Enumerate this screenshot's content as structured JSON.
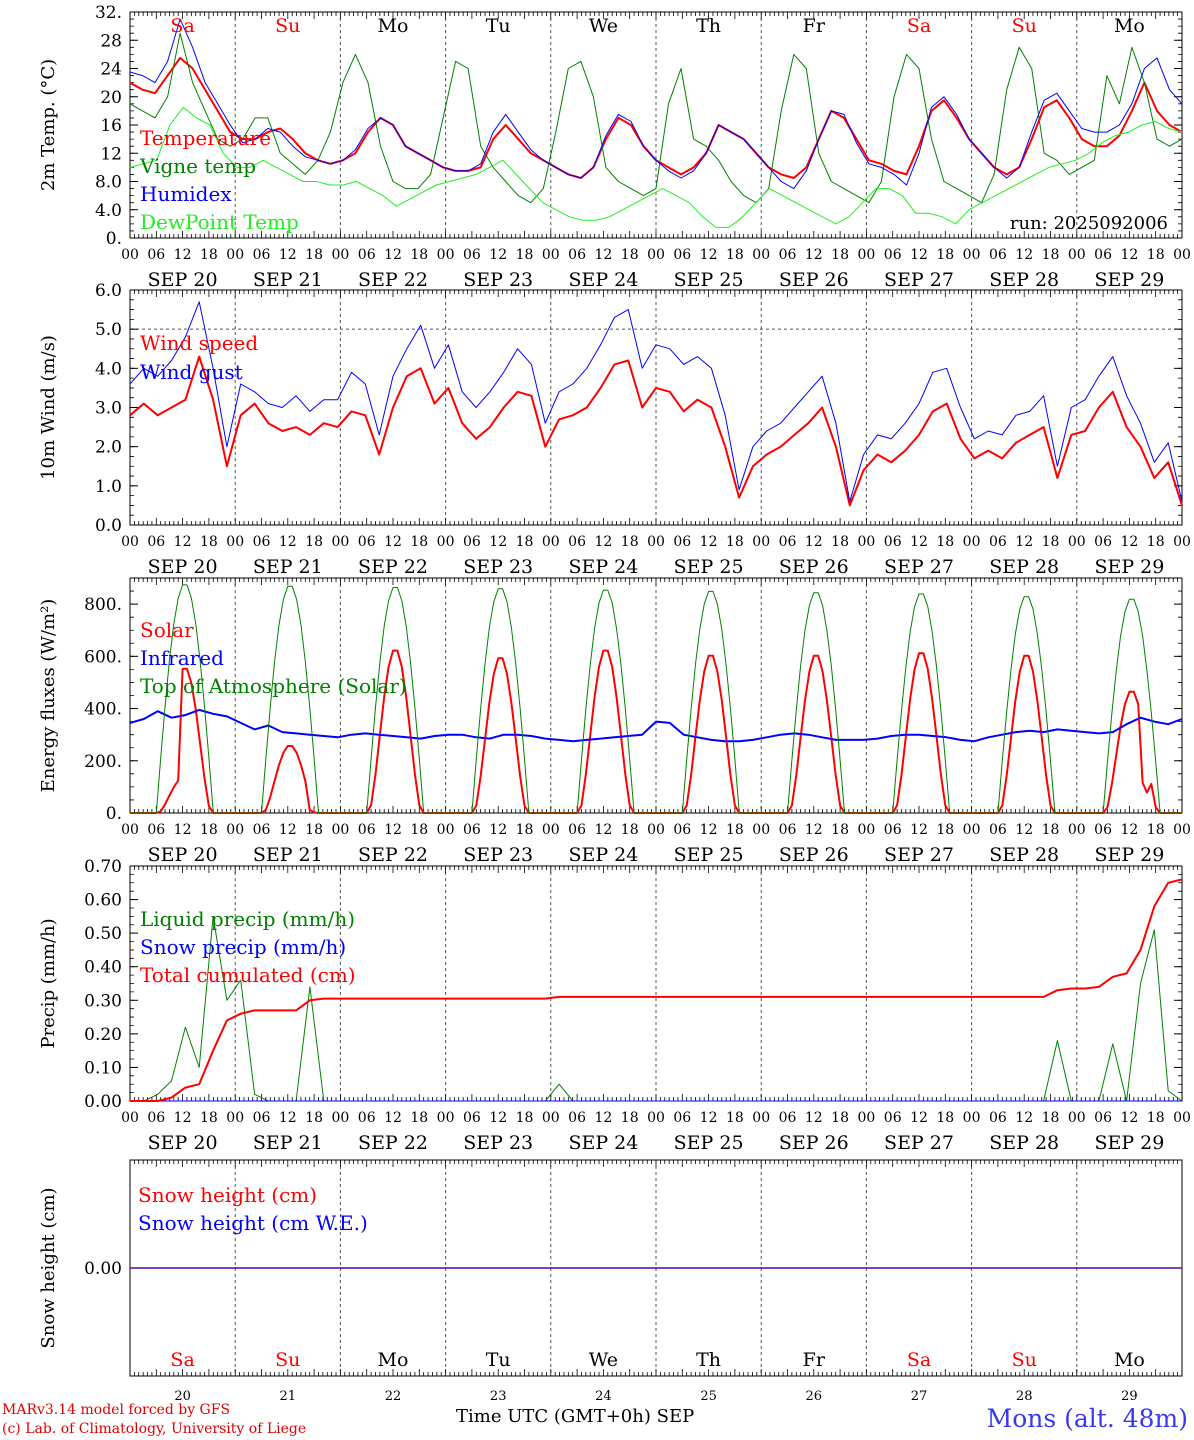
{
  "footer": {
    "credit_line1": "MARv3.14 model forced by GFS",
    "credit_line2": "(c) Lab. of Climatology, University of Liege",
    "xaxis_title": "Time UTC (GMT+0h)",
    "month": "SEP",
    "station": "Mons (alt. 48m)"
  },
  "colors": {
    "red": "#ff0000",
    "green": "#008000",
    "blue": "#0000ff",
    "lightgreen": "#22ee22",
    "grid": "#555555"
  },
  "days": [
    {
      "abbr": "Sa",
      "date": "SEP 20",
      "num": "20",
      "weekend": true
    },
    {
      "abbr": "Su",
      "date": "SEP 21",
      "num": "21",
      "weekend": true
    },
    {
      "abbr": "Mo",
      "date": "SEP 22",
      "num": "22",
      "weekend": false
    },
    {
      "abbr": "Tu",
      "date": "SEP 23",
      "num": "23",
      "weekend": false
    },
    {
      "abbr": "We",
      "date": "SEP 24",
      "num": "24",
      "weekend": false
    },
    {
      "abbr": "Th",
      "date": "SEP 25",
      "num": "25",
      "weekend": false
    },
    {
      "abbr": "Fr",
      "date": "SEP 26",
      "num": "26",
      "weekend": false
    },
    {
      "abbr": "Sa",
      "date": "SEP 27",
      "num": "27",
      "weekend": true
    },
    {
      "abbr": "Su",
      "date": "SEP 28",
      "num": "28",
      "weekend": true
    },
    {
      "abbr": "Mo",
      "date": "SEP 29",
      "num": "29",
      "weekend": false
    }
  ],
  "hour_ticks": [
    "00",
    "06",
    "12",
    "18"
  ],
  "hour_end": "00",
  "chart_data": [
    {
      "id": "temp",
      "type": "line",
      "ylabel": "2m Temp. (°C)",
      "ylim": [
        0,
        32
      ],
      "yticks": [
        "0.",
        "4.0",
        "8.0",
        "12",
        "16",
        "20",
        "24",
        "28",
        "32."
      ],
      "ytick_values": [
        0,
        4,
        8,
        12,
        16,
        20,
        24,
        28,
        32
      ],
      "dashed_levels": [],
      "annotation": "run: 2025092006",
      "x_hours_step": 3,
      "series": [
        {
          "name": "Temperature",
          "color": "red",
          "width": 2,
          "values": [
            22,
            21,
            20.5,
            23,
            25.5,
            24,
            21,
            18,
            15,
            14,
            14,
            15,
            15.5,
            14,
            12,
            11,
            10.5,
            11,
            12,
            15,
            17,
            16,
            13,
            12,
            11,
            10,
            9.5,
            9.5,
            10,
            14,
            16,
            14,
            12,
            11,
            10,
            9,
            8.5,
            10,
            14,
            17,
            16,
            13,
            11,
            10,
            9,
            10,
            12,
            16,
            15,
            14,
            12,
            10,
            9,
            8.5,
            10,
            14,
            18,
            17,
            14,
            11,
            10.5,
            9.5,
            9,
            13,
            18,
            19.5,
            17,
            14,
            12,
            10,
            9,
            10,
            14,
            18.5,
            19.5,
            17,
            14,
            13,
            13,
            14.5,
            18,
            22,
            18,
            16,
            15
          ]
        },
        {
          "name": "Vigne temp",
          "color": "green",
          "width": 1,
          "values": [
            19,
            18,
            17,
            20,
            29,
            22,
            18,
            14,
            13,
            14,
            17,
            17,
            12,
            10.5,
            9,
            11,
            15,
            22,
            26,
            22,
            13,
            8,
            7,
            7,
            9,
            17,
            25,
            24,
            13,
            10,
            8,
            6,
            5,
            7,
            15,
            24,
            25,
            20,
            10,
            8,
            7,
            6,
            7,
            19,
            24,
            14,
            13,
            11,
            8,
            6,
            5,
            7,
            18,
            26,
            24,
            12,
            8,
            7,
            6,
            5,
            8,
            20,
            26,
            24,
            14,
            8,
            7,
            6,
            5,
            9,
            21,
            27,
            24,
            12,
            11,
            9,
            10,
            11,
            23,
            19,
            27,
            22,
            14,
            13,
            14
          ]
        },
        {
          "name": "Humidex",
          "color": "blue",
          "width": 1,
          "values": [
            23.5,
            23,
            22,
            25,
            31,
            27,
            22,
            19,
            16,
            13.5,
            14,
            15.5,
            15,
            13,
            11.5,
            11,
            10.5,
            11,
            12.5,
            15.5,
            17,
            16,
            13,
            12,
            11,
            10,
            9.5,
            9.5,
            10.5,
            15,
            17.5,
            15,
            12.5,
            11,
            10,
            9,
            8.5,
            10,
            14.5,
            17.5,
            16.5,
            13,
            11,
            9.5,
            8.5,
            9.5,
            12,
            16,
            15,
            14,
            12,
            10,
            8,
            7,
            9.5,
            14,
            18,
            17.5,
            13.5,
            10.5,
            10,
            9,
            7.5,
            12,
            18.5,
            20,
            17.5,
            14,
            12,
            10,
            8.5,
            10,
            15,
            19.5,
            20.5,
            18,
            15.5,
            15,
            15,
            16,
            19,
            24,
            25.5,
            21,
            19
          ]
        },
        {
          "name": "DewPoint Temp",
          "color": "lightgreen",
          "width": 1,
          "values": [
            10,
            10.5,
            11,
            16,
            18.5,
            17,
            16,
            12,
            10,
            10,
            11,
            10,
            9,
            8,
            8,
            7.5,
            7.5,
            8,
            7,
            6,
            4.5,
            5.5,
            6.5,
            7.5,
            8,
            8.5,
            9,
            10,
            11,
            9,
            7,
            5,
            4,
            3,
            2.5,
            2.5,
            3,
            4,
            5,
            6,
            7,
            6,
            5,
            3,
            1.5,
            1.5,
            3,
            5,
            7,
            6,
            5,
            4,
            3,
            2,
            3,
            5,
            7,
            7,
            6,
            3.5,
            3.5,
            3,
            2,
            4,
            5,
            6,
            7,
            8,
            9,
            10,
            10.5,
            11,
            12,
            13.5,
            14.5,
            15,
            16,
            16.5,
            15.5,
            15
          ]
        }
      ],
      "legend": [
        "Temperature",
        "Vigne temp",
        "Humidex",
        "DewPoint Temp"
      ]
    },
    {
      "id": "wind",
      "type": "line",
      "ylabel": "10m Wind (m/s)",
      "ylim": [
        0,
        6
      ],
      "yticks": [
        "0.0",
        "1.0",
        "2.0",
        "3.0",
        "4.0",
        "5.0",
        "6.0"
      ],
      "ytick_values": [
        0,
        1,
        2,
        3,
        4,
        5,
        6
      ],
      "dashed_levels": [
        5
      ],
      "x_hours_step": 3,
      "series": [
        {
          "name": "Wind speed",
          "color": "red",
          "width": 2,
          "values": [
            2.8,
            3.1,
            2.8,
            3.0,
            3.2,
            4.3,
            3.2,
            1.5,
            2.8,
            3.1,
            2.6,
            2.4,
            2.5,
            2.3,
            2.6,
            2.5,
            2.9,
            2.8,
            1.8,
            3.0,
            3.8,
            4.0,
            3.1,
            3.5,
            2.6,
            2.2,
            2.5,
            3.0,
            3.4,
            3.3,
            2.0,
            2.7,
            2.8,
            3.0,
            3.5,
            4.1,
            4.2,
            3.0,
            3.5,
            3.4,
            2.9,
            3.2,
            3.0,
            2.0,
            0.7,
            1.5,
            1.8,
            2.0,
            2.3,
            2.6,
            3.0,
            2.0,
            0.5,
            1.4,
            1.8,
            1.6,
            1.9,
            2.3,
            2.9,
            3.1,
            2.2,
            1.7,
            1.9,
            1.7,
            2.1,
            2.3,
            2.5,
            1.2,
            2.3,
            2.4,
            3.0,
            3.4,
            2.5,
            2.0,
            1.2,
            1.6,
            0.5
          ]
        },
        {
          "name": "Wind gust",
          "color": "blue",
          "width": 1,
          "values": [
            3.6,
            4.0,
            3.8,
            4.2,
            4.8,
            5.7,
            4.0,
            2.0,
            3.6,
            3.4,
            3.1,
            3.0,
            3.3,
            2.9,
            3.2,
            3.2,
            3.9,
            3.6,
            2.3,
            3.8,
            4.5,
            5.1,
            4.0,
            4.6,
            3.4,
            3.0,
            3.4,
            3.9,
            4.5,
            4.1,
            2.6,
            3.4,
            3.6,
            4.0,
            4.6,
            5.3,
            5.5,
            4.0,
            4.6,
            4.5,
            4.1,
            4.3,
            4.0,
            2.8,
            0.9,
            2.0,
            2.4,
            2.6,
            3.0,
            3.4,
            3.8,
            2.6,
            0.6,
            1.8,
            2.3,
            2.2,
            2.6,
            3.1,
            3.9,
            4.0,
            3.0,
            2.2,
            2.4,
            2.3,
            2.8,
            2.9,
            3.3,
            1.5,
            3.0,
            3.2,
            3.8,
            4.3,
            3.3,
            2.6,
            1.6,
            2.1,
            0.6
          ]
        }
      ],
      "legend": [
        "Wind speed",
        "Wind gust"
      ]
    },
    {
      "id": "energy",
      "type": "line",
      "ylabel": "Energy fluxes (W/m²)",
      "ylim": [
        0,
        900
      ],
      "yticks": [
        "0.",
        "200.",
        "400.",
        "600.",
        "800."
      ],
      "ytick_values": [
        0,
        200,
        400,
        600,
        800
      ],
      "dashed_levels": [],
      "x_hours_step": 1,
      "series": [
        {
          "name": "Solar",
          "color": "red",
          "width": 2,
          "generator": "solar",
          "peaks": [
            560,
            260,
            630,
            600,
            630,
            610,
            610,
            620,
            610,
            470
          ]
        },
        {
          "name": "Infrared",
          "color": "blue",
          "width": 2,
          "values": [
            345,
            360,
            390,
            365,
            375,
            395,
            380,
            370,
            345,
            320,
            335,
            310,
            305,
            300,
            295,
            290,
            300,
            305,
            300,
            295,
            290,
            285,
            295,
            300,
            300,
            290,
            285,
            300,
            300,
            295,
            285,
            280,
            275,
            280,
            285,
            290,
            295,
            300,
            350,
            345,
            300,
            290,
            280,
            275,
            275,
            280,
            290,
            300,
            305,
            300,
            290,
            280,
            280,
            280,
            285,
            295,
            300,
            300,
            295,
            290,
            280,
            275,
            290,
            300,
            310,
            315,
            310,
            320,
            315,
            310,
            305,
            310,
            340,
            365,
            350,
            340,
            360
          ]
        },
        {
          "name": "Top of Atmosphere (Solar)",
          "color": "green",
          "width": 1,
          "generator": "toa",
          "peaks": [
            880,
            875,
            870,
            865,
            860,
            855,
            850,
            845,
            835,
            825
          ]
        }
      ],
      "legend": [
        "Solar",
        "Infrared",
        "Top of Atmosphere (Solar)"
      ]
    },
    {
      "id": "precip",
      "type": "line",
      "ylabel": "Precip (mm/h)",
      "ylim": [
        0,
        0.7
      ],
      "yticks": [
        "0.00",
        "0.10",
        "0.20",
        "0.30",
        "0.40",
        "0.50",
        "0.60",
        "0.70"
      ],
      "ytick_values": [
        0,
        0.1,
        0.2,
        0.3,
        0.4,
        0.5,
        0.6,
        0.7
      ],
      "dashed_levels": [],
      "x_hours_step": 3,
      "series": [
        {
          "name": "Liquid precip (mm/h)",
          "color": "green",
          "width": 1,
          "values": [
            0,
            0,
            0.02,
            0.06,
            0.22,
            0.1,
            0.55,
            0.3,
            0.36,
            0.02,
            0,
            0,
            0,
            0.34,
            0,
            0,
            0,
            0,
            0,
            0,
            0,
            0,
            0,
            0,
            0,
            0,
            0,
            0,
            0,
            0,
            0,
            0.05,
            0,
            0,
            0,
            0,
            0,
            0,
            0,
            0,
            0,
            0,
            0,
            0,
            0,
            0,
            0,
            0,
            0,
            0,
            0,
            0,
            0,
            0,
            0,
            0,
            0,
            0,
            0,
            0,
            0,
            0,
            0,
            0,
            0,
            0,
            0,
            0.18,
            0,
            0,
            0,
            0.17,
            0,
            0.35,
            0.51,
            0.03,
            0
          ]
        },
        {
          "name": "Snow precip (mm/h)",
          "color": "blue",
          "width": 1,
          "values": [
            0,
            0,
            0,
            0,
            0,
            0,
            0,
            0,
            0,
            0,
            0,
            0,
            0,
            0,
            0,
            0,
            0,
            0,
            0,
            0,
            0,
            0,
            0,
            0,
            0,
            0,
            0,
            0,
            0,
            0,
            0,
            0,
            0,
            0,
            0,
            0,
            0,
            0,
            0,
            0,
            0,
            0,
            0,
            0,
            0,
            0,
            0,
            0,
            0,
            0,
            0,
            0,
            0,
            0,
            0,
            0,
            0,
            0,
            0,
            0,
            0,
            0,
            0,
            0,
            0,
            0,
            0,
            0,
            0,
            0,
            0,
            0,
            0,
            0,
            0,
            0,
            0
          ]
        },
        {
          "name": "Total cumulated (cm)",
          "color": "red",
          "width": 2,
          "values": [
            0,
            0,
            0,
            0.01,
            0.04,
            0.05,
            0.15,
            0.24,
            0.26,
            0.27,
            0.27,
            0.27,
            0.27,
            0.3,
            0.305,
            0.305,
            0.305,
            0.305,
            0.305,
            0.305,
            0.305,
            0.305,
            0.305,
            0.305,
            0.305,
            0.305,
            0.305,
            0.305,
            0.305,
            0.305,
            0.305,
            0.31,
            0.31,
            0.31,
            0.31,
            0.31,
            0.31,
            0.31,
            0.31,
            0.31,
            0.31,
            0.31,
            0.31,
            0.31,
            0.31,
            0.31,
            0.31,
            0.31,
            0.31,
            0.31,
            0.31,
            0.31,
            0.31,
            0.31,
            0.31,
            0.31,
            0.31,
            0.31,
            0.31,
            0.31,
            0.31,
            0.31,
            0.31,
            0.31,
            0.31,
            0.31,
            0.31,
            0.33,
            0.335,
            0.335,
            0.34,
            0.37,
            0.38,
            0.45,
            0.58,
            0.65,
            0.66
          ]
        }
      ],
      "legend": [
        "Liquid precip (mm/h)",
        "Snow precip (mm/h)",
        "Total cumulated (cm)"
      ]
    },
    {
      "id": "snow",
      "type": "line",
      "ylabel": "Snow height (cm)",
      "ylim": [
        -1,
        1
      ],
      "yticks": [
        "0.00"
      ],
      "ytick_values": [
        0
      ],
      "dashed_levels": [],
      "x_hours_step": 3,
      "series": [
        {
          "name": "Snow height (cm)",
          "color": "red",
          "width": 1.5,
          "values": [
            0,
            0
          ]
        },
        {
          "name": "Snow height (cm W.E.)",
          "color": "blue",
          "width": 1,
          "values": [
            0,
            0
          ]
        }
      ],
      "legend": [
        "Snow height (cm)",
        "Snow height (cm W.E.)"
      ]
    }
  ]
}
